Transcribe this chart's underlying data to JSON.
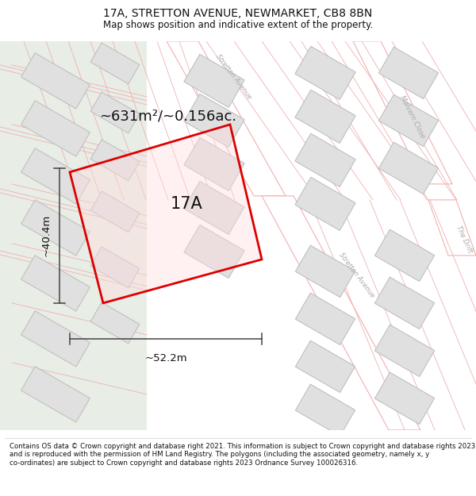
{
  "title": "17A, STRETTON AVENUE, NEWMARKET, CB8 8BN",
  "subtitle": "Map shows position and indicative extent of the property.",
  "footer": "Contains OS data © Crown copyright and database right 2021. This information is subject to Crown copyright and database rights 2023 and is reproduced with the permission of HM Land Registry. The polygons (including the associated geometry, namely x, y co-ordinates) are subject to Crown copyright and database rights 2023 Ordnance Survey 100026316.",
  "area_label": "~631m²/~0.156ac.",
  "plot_label": "17A",
  "dim_width": "~52.2m",
  "dim_height": "~40.4m",
  "map_bg": "#ffffff",
  "left_bg": "#e8ede6",
  "road_line_color": "#f0b0b0",
  "building_color": "#e0e0e0",
  "building_edge": "#c0c0c0",
  "plot_color": "#dd0000",
  "dim_color": "#444444",
  "street_label_color": "#aaaaaa",
  "title_fontsize": 10,
  "subtitle_fontsize": 8.5,
  "footer_fontsize": 6.2,
  "area_fontsize": 13,
  "plot_label_fontsize": 15,
  "dim_fontsize": 9.5
}
